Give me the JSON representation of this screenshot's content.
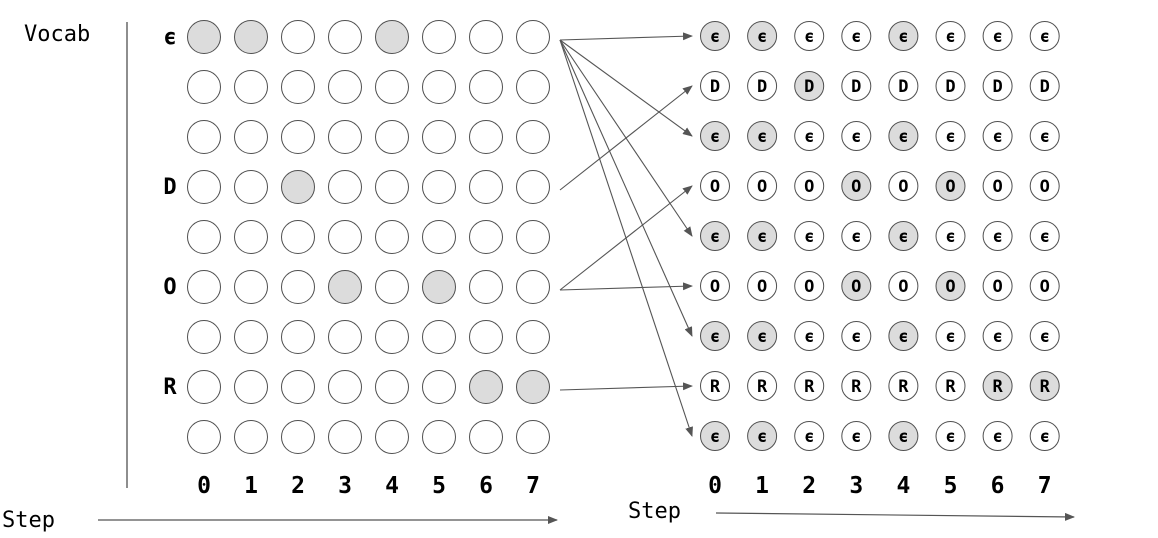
{
  "left_panel": {
    "vocab_label": "Vocab",
    "step_label": "Step",
    "row_labels": [
      "ϵ",
      "",
      "",
      "D",
      "",
      "O",
      "",
      "R",
      ""
    ],
    "steps": [
      "0",
      "1",
      "2",
      "3",
      "4",
      "5",
      "6",
      "7"
    ],
    "filled": [
      [
        1,
        1,
        0,
        0,
        1,
        0,
        0,
        0
      ],
      [
        0,
        0,
        0,
        0,
        0,
        0,
        0,
        0
      ],
      [
        0,
        0,
        0,
        0,
        0,
        0,
        0,
        0
      ],
      [
        0,
        0,
        1,
        0,
        0,
        0,
        0,
        0
      ],
      [
        0,
        0,
        0,
        0,
        0,
        0,
        0,
        0
      ],
      [
        0,
        0,
        0,
        1,
        0,
        1,
        0,
        0
      ],
      [
        0,
        0,
        0,
        0,
        0,
        0,
        0,
        0
      ],
      [
        0,
        0,
        0,
        0,
        0,
        0,
        1,
        1
      ],
      [
        0,
        0,
        0,
        0,
        0,
        0,
        0,
        0
      ]
    ]
  },
  "right_panel": {
    "step_label": "Step",
    "steps": [
      "0",
      "1",
      "2",
      "3",
      "4",
      "5",
      "6",
      "7"
    ],
    "row_tokens": [
      "ϵ",
      "D",
      "ϵ",
      "O",
      "ϵ",
      "O",
      "ϵ",
      "R",
      "ϵ"
    ],
    "filled": [
      [
        1,
        1,
        0,
        0,
        1,
        0,
        0,
        0
      ],
      [
        0,
        0,
        1,
        0,
        0,
        0,
        0,
        0
      ],
      [
        1,
        1,
        0,
        0,
        1,
        0,
        0,
        0
      ],
      [
        0,
        0,
        0,
        1,
        0,
        1,
        0,
        0
      ],
      [
        1,
        1,
        0,
        0,
        1,
        0,
        0,
        0
      ],
      [
        0,
        0,
        0,
        1,
        0,
        1,
        0,
        0
      ],
      [
        1,
        1,
        0,
        0,
        1,
        0,
        0,
        0
      ],
      [
        0,
        0,
        0,
        0,
        0,
        0,
        1,
        1
      ],
      [
        1,
        1,
        0,
        0,
        1,
        0,
        0,
        0
      ]
    ]
  },
  "arrows": [
    {
      "from_row": 0,
      "to_rows": [
        0,
        2,
        4,
        6,
        8
      ]
    },
    {
      "from_row": 3,
      "to_rows": [
        1
      ]
    },
    {
      "from_row": 5,
      "to_rows": [
        3,
        5
      ]
    },
    {
      "from_row": 7,
      "to_rows": [
        7
      ]
    }
  ],
  "colors": {
    "filled": "#dcdcdc",
    "empty": "#ffffff",
    "stroke": "#505050",
    "arrow": "#555555",
    "text": "#000000"
  }
}
